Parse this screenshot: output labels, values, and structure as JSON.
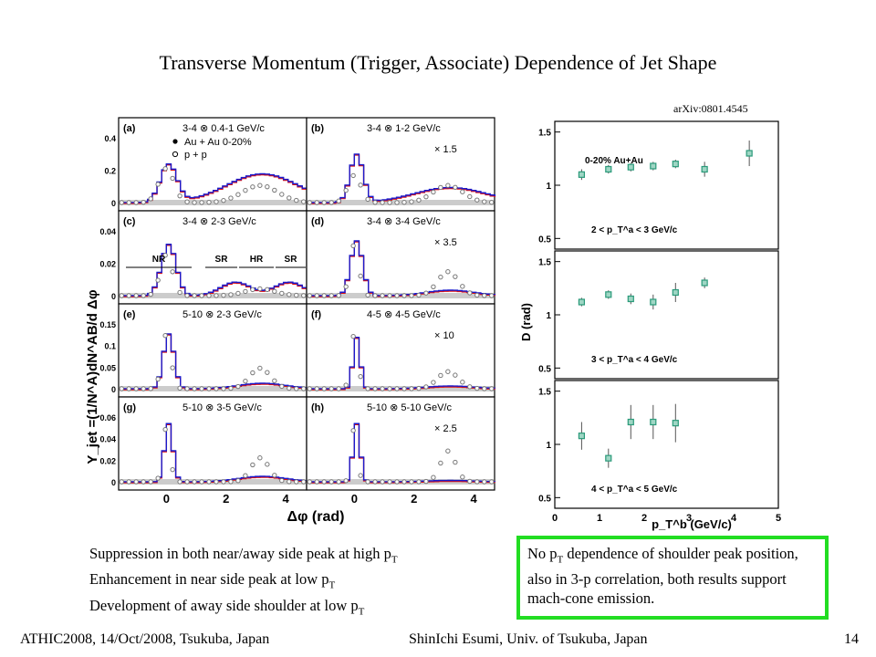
{
  "slide": {
    "title": "Transverse Momentum (Trigger, Associate) Dependence of Jet Shape",
    "reference": "arXiv:0801.4545"
  },
  "left_figure": {
    "y_axis_label": "Y_jet =(1/N^A)dN^AB/d Δφ",
    "x_axis_label": "Δφ (rad)",
    "x_ticks": [
      "0",
      "2",
      "4"
    ],
    "legend": [
      "Au + Au 0-20%",
      "p + p"
    ],
    "regions": [
      "NR",
      "SR",
      "HR",
      "SR"
    ],
    "panels": [
      {
        "tag": "(a)",
        "label": "3-4 ⊗ 0.4-1 GeV/c",
        "scale": "",
        "y_ticks": [
          "0",
          "0.2",
          "0.4"
        ]
      },
      {
        "tag": "(b)",
        "label": "3-4 ⊗ 1-2 GeV/c",
        "scale": "× 1.5",
        "y_ticks": []
      },
      {
        "tag": "(c)",
        "label": "3-4 ⊗ 2-3 GeV/c",
        "scale": "",
        "y_ticks": [
          "0",
          "0.02",
          "0.04"
        ]
      },
      {
        "tag": "(d)",
        "label": "3-4 ⊗ 3-4 GeV/c",
        "scale": "× 3.5",
        "y_ticks": []
      },
      {
        "tag": "(e)",
        "label": "5-10 ⊗ 2-3 GeV/c",
        "scale": "",
        "y_ticks": [
          "0",
          "0.05",
          "0.1",
          "0.15"
        ]
      },
      {
        "tag": "(f)",
        "label": "4-5 ⊗ 4-5 GeV/c",
        "scale": "× 10",
        "y_ticks": []
      },
      {
        "tag": "(g)",
        "label": "5-10 ⊗ 3-5 GeV/c",
        "scale": "",
        "y_ticks": [
          "0",
          "0.02",
          "0.04",
          "0.06"
        ]
      },
      {
        "tag": "(h)",
        "label": "5-10 ⊗ 5-10 GeV/c",
        "scale": "× 2.5",
        "y_ticks": []
      }
    ]
  },
  "chart_data": {
    "type": "scatter",
    "title": "0-20% Au+Au",
    "ylabel": "D (rad)",
    "xlabel": "p_T^b (GeV/c)",
    "xlim": [
      0,
      5
    ],
    "x_ticks": [
      "0",
      "1",
      "2",
      "3",
      "4",
      "5"
    ],
    "panels": [
      {
        "label": "2 < p_T^a < 3 GeV/c",
        "ylim": [
          0.4,
          1.6
        ],
        "y_ticks": [
          "0.5",
          "1",
          "1.5"
        ],
        "x": [
          0.6,
          1.2,
          1.7,
          2.2,
          2.7,
          3.35,
          4.35
        ],
        "y": [
          1.1,
          1.15,
          1.17,
          1.18,
          1.2,
          1.15,
          1.3
        ],
        "err": [
          0.05,
          0.04,
          0.04,
          0.04,
          0.04,
          0.07,
          0.12
        ]
      },
      {
        "label": "3 < p_T^a < 4 GeV/c",
        "ylim": [
          0.4,
          1.6
        ],
        "y_ticks": [
          "0.5",
          "1",
          "1.5"
        ],
        "x": [
          0.6,
          1.2,
          1.7,
          2.2,
          2.7,
          3.35
        ],
        "y": [
          1.12,
          1.19,
          1.15,
          1.12,
          1.21,
          1.3
        ],
        "err": [
          0.04,
          0.04,
          0.05,
          0.07,
          0.09,
          0.05
        ]
      },
      {
        "label": "4 < p_T^a < 5 GeV/c",
        "ylim": [
          0.4,
          1.6
        ],
        "y_ticks": [
          "0.5",
          "1",
          "1.5"
        ],
        "x": [
          0.6,
          1.2,
          1.7,
          2.2,
          2.7
        ],
        "y": [
          1.08,
          0.87,
          1.21,
          1.21,
          1.2
        ],
        "err": [
          0.13,
          0.09,
          0.16,
          0.16,
          0.18
        ]
      }
    ]
  },
  "bullets": [
    {
      "text": "Suppression in both near/away side peak at high p",
      "sub": "T"
    },
    {
      "text": "Enhancement in near side peak at low p",
      "sub": "T"
    },
    {
      "text": "Development of away side shoulder at low p",
      "sub": "T"
    }
  ],
  "summary": {
    "pre": "No p",
    "sub": "T",
    "post": " dependence of shoulder peak position, also in 3-p correlation, both results support mach-cone emission."
  },
  "footer": {
    "left": "ATHIC2008, 14/Oct/2008, Tsukuba, Japan",
    "center": "ShinIchi Esumi, Univ. of Tsukuba, Japan",
    "page": "14"
  },
  "colors": {
    "auau": "#1a1acc",
    "auau_alt": "#dd1111",
    "pp": "#777777",
    "marker": "#2a9a7a",
    "box_border": "#22dd22"
  }
}
